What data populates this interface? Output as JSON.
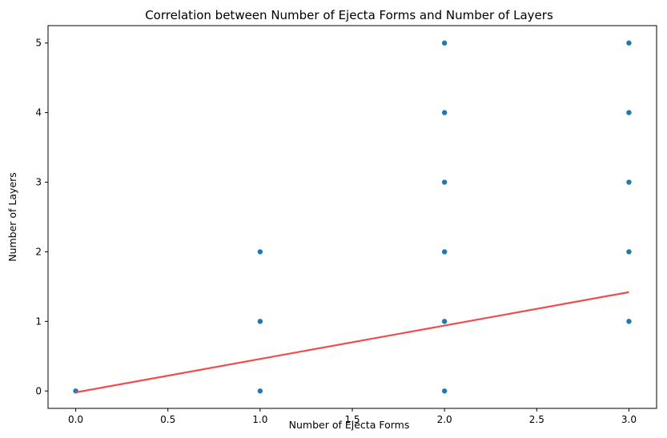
{
  "chart_data": {
    "type": "scatter",
    "title": "Correlation between Number of Ejecta Forms and Number of Layers",
    "xlabel": "Number of Ejecta Forms",
    "ylabel": "Number of Layers",
    "xlim": [
      -0.15,
      3.15
    ],
    "ylim": [
      -0.25,
      5.25
    ],
    "xticks": [
      "0.0",
      "0.5",
      "1.0",
      "1.5",
      "2.0",
      "2.5",
      "3.0"
    ],
    "xtick_values": [
      0,
      0.5,
      1,
      1.5,
      2,
      2.5,
      3
    ],
    "yticks": [
      "0",
      "1",
      "2",
      "3",
      "4",
      "5"
    ],
    "ytick_values": [
      0,
      1,
      2,
      3,
      4,
      5
    ],
    "grid": false,
    "points": [
      {
        "x": 0,
        "y": 0
      },
      {
        "x": 1,
        "y": 0
      },
      {
        "x": 1,
        "y": 1
      },
      {
        "x": 1,
        "y": 2
      },
      {
        "x": 2,
        "y": 0
      },
      {
        "x": 2,
        "y": 1
      },
      {
        "x": 2,
        "y": 2
      },
      {
        "x": 2,
        "y": 3
      },
      {
        "x": 2,
        "y": 4
      },
      {
        "x": 2,
        "y": 5
      },
      {
        "x": 3,
        "y": 1
      },
      {
        "x": 3,
        "y": 2
      },
      {
        "x": 3,
        "y": 3
      },
      {
        "x": 3,
        "y": 4
      },
      {
        "x": 3,
        "y": 5
      }
    ],
    "trend_line": {
      "x": [
        0,
        3
      ],
      "y": [
        -0.02,
        1.42
      ]
    },
    "colors": {
      "points": "#1f77b4",
      "trend_line": "#f24b4b"
    }
  }
}
